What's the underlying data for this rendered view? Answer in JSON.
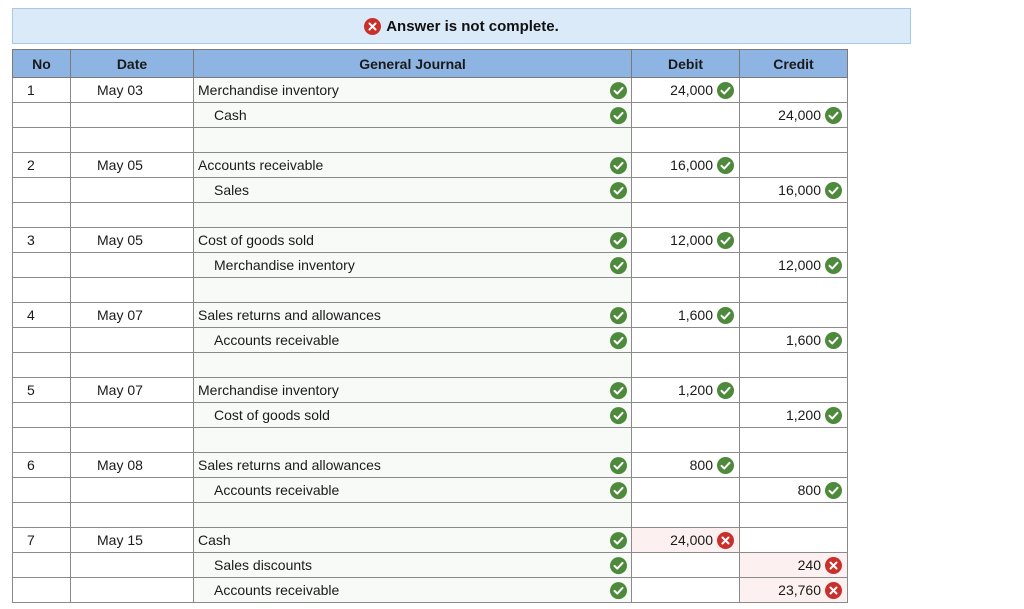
{
  "banner": {
    "text": "Answer is not complete."
  },
  "headers": {
    "no": "No",
    "date": "Date",
    "journal": "General Journal",
    "debit": "Debit",
    "credit": "Credit"
  },
  "colors": {
    "header_bg": "#8eb4e3",
    "banner_bg": "#dbeaf8",
    "correct": "#4d8a3c",
    "incorrect": "#c9302c"
  },
  "rows": [
    {
      "no": "1",
      "date": "May 03",
      "account": "Merchandise inventory",
      "indent": false,
      "mark": "correct",
      "debit": "24,000",
      "debit_mark": "correct",
      "credit": "",
      "credit_mark": ""
    },
    {
      "no": "",
      "date": "",
      "account": "Cash",
      "indent": true,
      "mark": "correct",
      "debit": "",
      "debit_mark": "",
      "credit": "24,000",
      "credit_mark": "correct"
    },
    {
      "no": "",
      "date": "",
      "account": "",
      "indent": false,
      "mark": "",
      "debit": "",
      "debit_mark": "",
      "credit": "",
      "credit_mark": ""
    },
    {
      "no": "2",
      "date": "May 05",
      "account": "Accounts receivable",
      "indent": false,
      "mark": "correct",
      "debit": "16,000",
      "debit_mark": "correct",
      "credit": "",
      "credit_mark": ""
    },
    {
      "no": "",
      "date": "",
      "account": "Sales",
      "indent": true,
      "mark": "correct",
      "debit": "",
      "debit_mark": "",
      "credit": "16,000",
      "credit_mark": "correct"
    },
    {
      "no": "",
      "date": "",
      "account": "",
      "indent": false,
      "mark": "",
      "debit": "",
      "debit_mark": "",
      "credit": "",
      "credit_mark": ""
    },
    {
      "no": "3",
      "date": "May 05",
      "account": "Cost of goods sold",
      "indent": false,
      "mark": "correct",
      "debit": "12,000",
      "debit_mark": "correct",
      "credit": "",
      "credit_mark": ""
    },
    {
      "no": "",
      "date": "",
      "account": "Merchandise inventory",
      "indent": true,
      "mark": "correct",
      "debit": "",
      "debit_mark": "",
      "credit": "12,000",
      "credit_mark": "correct"
    },
    {
      "no": "",
      "date": "",
      "account": "",
      "indent": false,
      "mark": "",
      "debit": "",
      "debit_mark": "",
      "credit": "",
      "credit_mark": ""
    },
    {
      "no": "4",
      "date": "May 07",
      "account": "Sales returns and allowances",
      "indent": false,
      "mark": "correct",
      "debit": "1,600",
      "debit_mark": "correct",
      "credit": "",
      "credit_mark": ""
    },
    {
      "no": "",
      "date": "",
      "account": "Accounts receivable",
      "indent": true,
      "mark": "correct",
      "debit": "",
      "debit_mark": "",
      "credit": "1,600",
      "credit_mark": "correct"
    },
    {
      "no": "",
      "date": "",
      "account": "",
      "indent": false,
      "mark": "",
      "debit": "",
      "debit_mark": "",
      "credit": "",
      "credit_mark": ""
    },
    {
      "no": "5",
      "date": "May 07",
      "account": "Merchandise inventory",
      "indent": false,
      "mark": "correct",
      "debit": "1,200",
      "debit_mark": "correct",
      "credit": "",
      "credit_mark": ""
    },
    {
      "no": "",
      "date": "",
      "account": "Cost of goods sold",
      "indent": true,
      "mark": "correct",
      "debit": "",
      "debit_mark": "",
      "credit": "1,200",
      "credit_mark": "correct"
    },
    {
      "no": "",
      "date": "",
      "account": "",
      "indent": false,
      "mark": "",
      "debit": "",
      "debit_mark": "",
      "credit": "",
      "credit_mark": ""
    },
    {
      "no": "6",
      "date": "May 08",
      "account": "Sales returns and allowances",
      "indent": false,
      "mark": "correct",
      "debit": "800",
      "debit_mark": "correct",
      "credit": "",
      "credit_mark": ""
    },
    {
      "no": "",
      "date": "",
      "account": "Accounts receivable",
      "indent": true,
      "mark": "correct",
      "debit": "",
      "debit_mark": "",
      "credit": "800",
      "credit_mark": "correct"
    },
    {
      "no": "",
      "date": "",
      "account": "",
      "indent": false,
      "mark": "",
      "debit": "",
      "debit_mark": "",
      "credit": "",
      "credit_mark": ""
    },
    {
      "no": "7",
      "date": "May 15",
      "account": "Cash",
      "indent": false,
      "mark": "correct",
      "debit": "24,000",
      "debit_mark": "incorrect",
      "credit": "",
      "credit_mark": ""
    },
    {
      "no": "",
      "date": "",
      "account": "Sales discounts",
      "indent": true,
      "mark": "correct",
      "debit": "",
      "debit_mark": "",
      "credit": "240",
      "credit_mark": "incorrect"
    },
    {
      "no": "",
      "date": "",
      "account": "Accounts receivable",
      "indent": true,
      "mark": "correct",
      "debit": "",
      "debit_mark": "",
      "credit": "23,760",
      "credit_mark": "incorrect"
    }
  ]
}
